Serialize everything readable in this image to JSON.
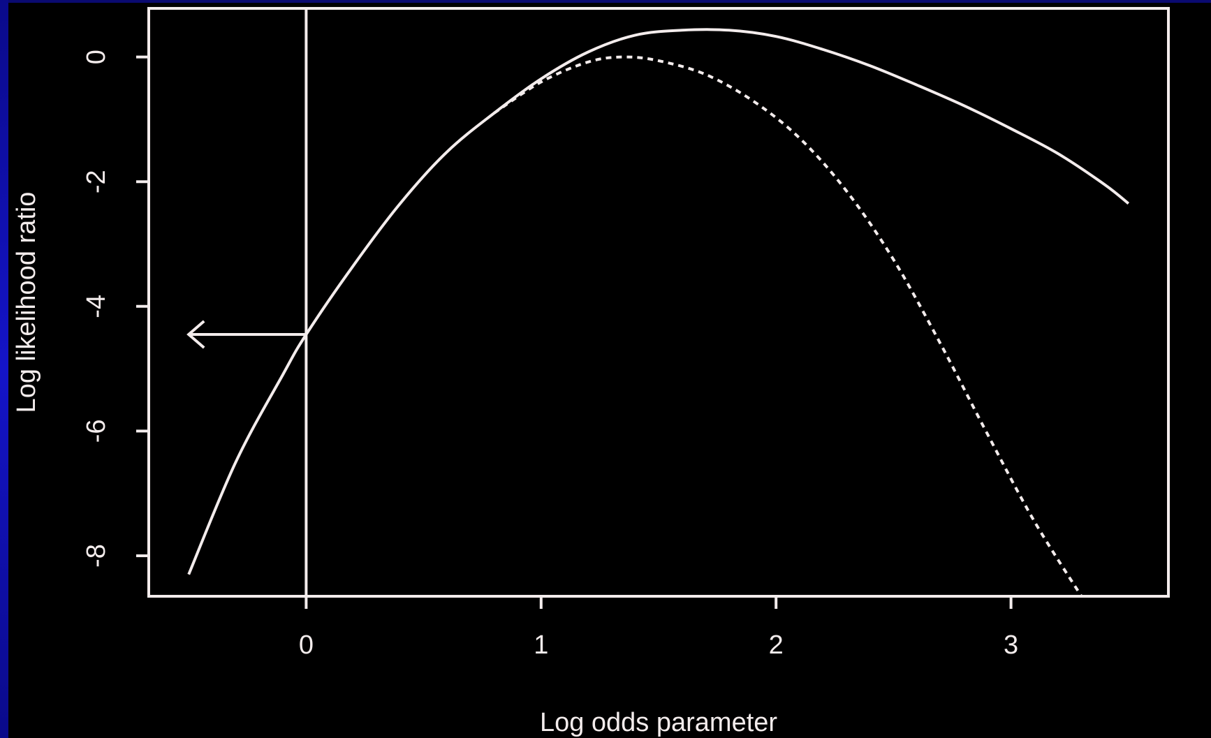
{
  "colors": {
    "background": "#000000",
    "foreground": "#f3ecec",
    "side_stripe": "#1414c8"
  },
  "chart_data": {
    "type": "line",
    "title": "",
    "xlabel": "Log odds parameter",
    "ylabel": "Log likelihood ratio",
    "xlim": [
      -0.67,
      3.67
    ],
    "ylim": [
      -8.65,
      0.78
    ],
    "x_ticks": [
      0,
      1,
      2,
      3
    ],
    "x_tick_labels": [
      "0",
      "1",
      "2",
      "3"
    ],
    "y_ticks": [
      0,
      -2,
      -4,
      -6,
      -8
    ],
    "y_tick_labels": [
      "0",
      "-2",
      "-4",
      "-6",
      "-8"
    ],
    "grid": false,
    "series": [
      {
        "style": "solid",
        "x": [
          -0.5,
          -0.3,
          -0.1,
          0.0,
          0.2,
          0.4,
          0.6,
          0.8,
          1.0,
          1.2,
          1.4,
          1.6,
          1.8,
          2.0,
          2.2,
          2.4,
          2.6,
          2.8,
          3.0,
          3.2,
          3.4,
          3.5
        ],
        "y": [
          -8.3,
          -6.5,
          -5.1,
          -4.45,
          -3.35,
          -2.35,
          -1.52,
          -0.9,
          -0.35,
          0.08,
          0.35,
          0.43,
          0.43,
          0.33,
          0.12,
          -0.14,
          -0.45,
          -0.78,
          -1.15,
          -1.55,
          -2.05,
          -2.35
        ]
      },
      {
        "style": "dashed",
        "x": [
          0.8,
          1.0,
          1.2,
          1.35,
          1.5,
          1.7,
          1.9,
          2.1,
          2.3,
          2.5,
          2.7,
          2.9,
          3.1,
          3.3
        ],
        "y": [
          -0.9,
          -0.4,
          -0.08,
          0.0,
          -0.06,
          -0.28,
          -0.7,
          -1.3,
          -2.15,
          -3.25,
          -4.6,
          -6.05,
          -7.45,
          -8.65
        ]
      }
    ],
    "annotations": {
      "vertical_line_x": 0,
      "arrow": {
        "y": -4.45,
        "from_x": 0,
        "to_x": -0.5
      }
    }
  }
}
